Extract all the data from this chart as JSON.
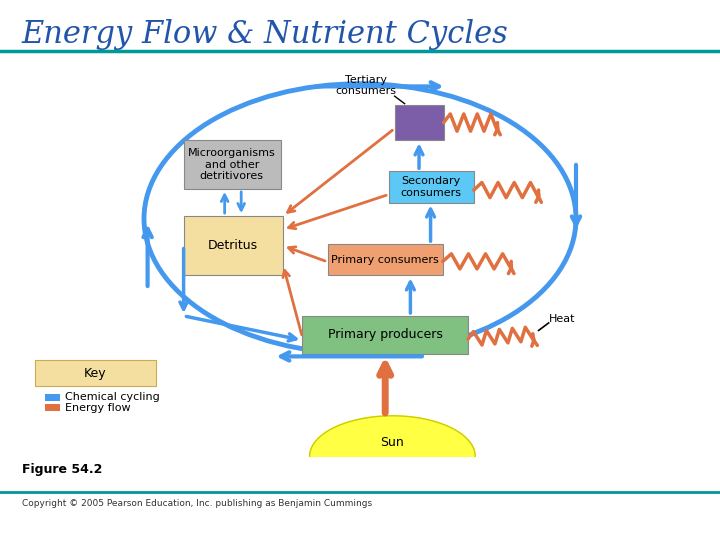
{
  "title": "Energy Flow & Nutrient Cycles",
  "title_fontsize": 22,
  "title_color": "#2255AA",
  "background_color": "#FFFFFF",
  "teal_line_color": "#009999",
  "figure_caption": "Figure 54.2",
  "copyright_text": "Copyright © 2005 Pearson Education, Inc. publishing as Benjamin Cummings",
  "blue_color": "#4499EE",
  "orange_color": "#E07040"
}
